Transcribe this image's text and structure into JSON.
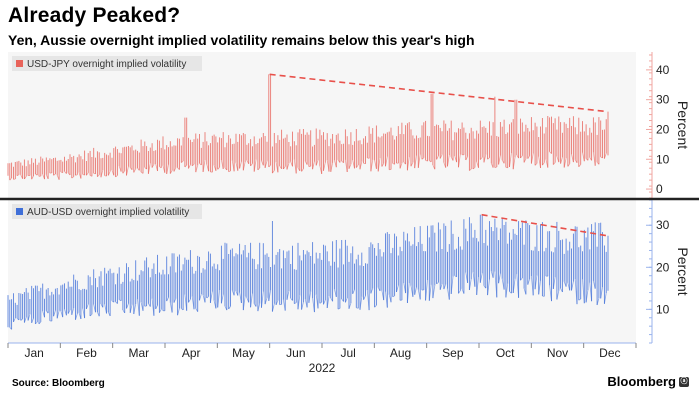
{
  "title": "Already Peaked?",
  "subtitle": "Yen, Aussie overnight implied volatility remains below this year's high",
  "source": "Source: Bloomberg",
  "brand": "Bloomberg",
  "brand_mark": "ⓐ",
  "chart_data": [
    {
      "type": "line",
      "series": [
        {
          "name": "USD-JPY overnight implied volatility",
          "color": "#e8635a"
        }
      ],
      "legend": "top-left",
      "ylabel": "Percent",
      "yticks": [
        0,
        10,
        20,
        30,
        40
      ],
      "ylim": [
        -3,
        46
      ],
      "trendline": {
        "from": {
          "month_index": 5.0,
          "value": 38.5
        },
        "to": {
          "month_index": 11.45,
          "value": 26
        },
        "style": "dashed"
      }
    },
    {
      "type": "line",
      "series": [
        {
          "name": "AUD-USD overnight implied volatility",
          "color": "#3f6fd8"
        }
      ],
      "legend": "top-left",
      "ylabel": "Percent",
      "yticks": [
        10,
        20,
        30
      ],
      "ylim": [
        2,
        36
      ],
      "trendline": {
        "from": {
          "month_index": 9.05,
          "value": 32.5
        },
        "to": {
          "month_index": 11.45,
          "value": 27.5
        },
        "style": "dashed"
      }
    }
  ],
  "x_axis": {
    "months": [
      "Jan",
      "Feb",
      "Mar",
      "Apr",
      "May",
      "Jun",
      "Jul",
      "Aug",
      "Sep",
      "Oct",
      "Nov",
      "Dec"
    ],
    "year": "2022"
  }
}
